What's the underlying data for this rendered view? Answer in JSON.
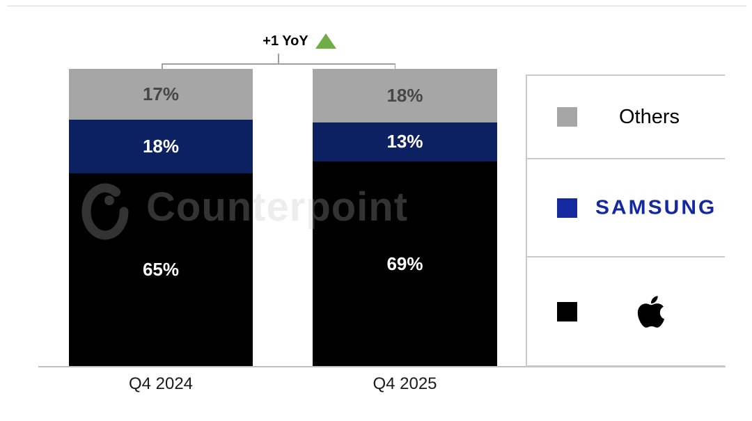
{
  "watermark": {
    "text": "Counterpoint"
  },
  "chart_data": {
    "type": "bar",
    "variant": "stacked-100-column",
    "title": "",
    "categories": [
      "Q4 2024",
      "Q4 2025"
    ],
    "series": [
      {
        "name": "Apple",
        "values": [
          65,
          69
        ],
        "color": "#000000",
        "label_color": "#FFFFFF"
      },
      {
        "name": "Samsung",
        "values": [
          18,
          13
        ],
        "color": "#0B2161",
        "label_color": "#FFFFFF"
      },
      {
        "name": "Others",
        "values": [
          17,
          18
        ],
        "color": "#A6A6A6",
        "label_color": "#474747"
      }
    ],
    "stack_order_bottom_to_top": [
      "Apple",
      "Samsung",
      "Others"
    ],
    "value_suffix": "%",
    "ylim": [
      0,
      100
    ],
    "grid": false,
    "legend_position": "right",
    "annotation": {
      "text": "+1 YoY",
      "icon": "up-triangle",
      "color": "#70AD47"
    }
  },
  "legend": {
    "items": [
      {
        "label": "Others",
        "color": "#A6A6A6",
        "icon": "gray-square"
      },
      {
        "label": "SAMSUNG",
        "color": "#1428A0",
        "icon": "blue-square"
      },
      {
        "label": "Apple",
        "color": "#000000",
        "icon": "apple-logo"
      }
    ]
  },
  "axis": {
    "line_color": "#BFBFBF"
  }
}
